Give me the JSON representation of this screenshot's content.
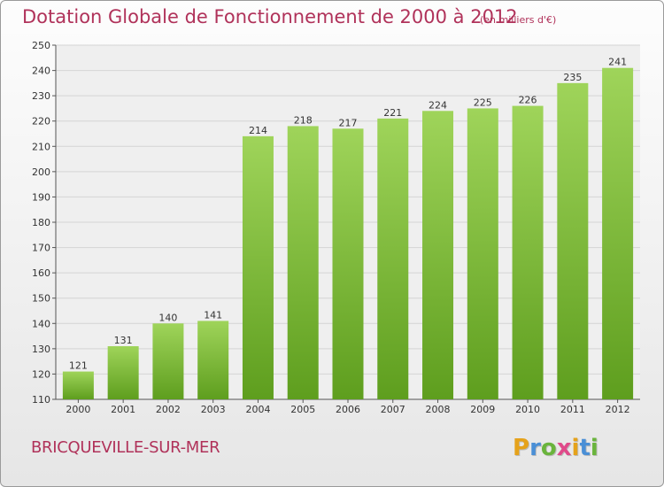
{
  "title": "Dotation Globale de Fonctionnement de 2000 à 2012",
  "unit_note": "(en milliers d'€)",
  "commune": "BRICQUEVILLE-SUR-MER",
  "logo": {
    "letters": [
      "P",
      "r",
      "o",
      "x",
      "i",
      "t",
      "i"
    ],
    "colors": [
      "#e5a21b",
      "#4a8fd6",
      "#6ab43c",
      "#e04a8a",
      "#e5a21b",
      "#4a8fd6",
      "#6ab43c"
    ]
  },
  "chart_data": {
    "type": "bar",
    "categories": [
      "2000",
      "2001",
      "2002",
      "2003",
      "2004",
      "2005",
      "2006",
      "2007",
      "2008",
      "2009",
      "2010",
      "2011",
      "2012"
    ],
    "values": [
      121,
      131,
      140,
      141,
      214,
      218,
      217,
      221,
      224,
      225,
      226,
      235,
      241
    ],
    "ylim": [
      110,
      250
    ],
    "yticks": [
      110,
      120,
      130,
      140,
      150,
      160,
      170,
      180,
      190,
      200,
      210,
      220,
      230,
      240,
      250
    ],
    "grid": true,
    "bar_color": "#7cc232"
  }
}
